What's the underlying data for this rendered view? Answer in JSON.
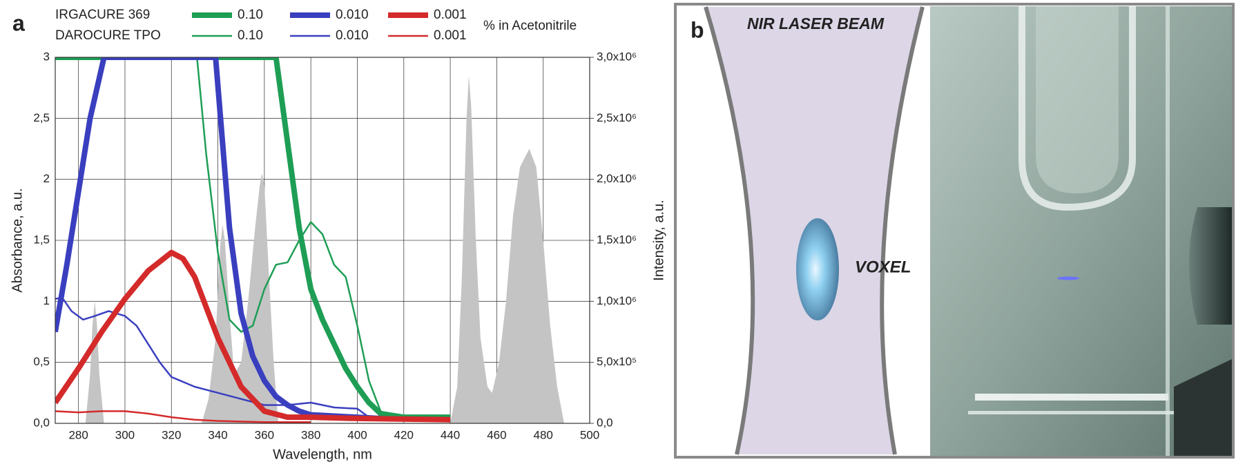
{
  "chart_data": {
    "type": "line",
    "panel_label": "a",
    "x_label": "Wavelength, nm",
    "y_label": "Absorbance, a.u.",
    "y2_label": "Intensity, a.u.",
    "legend_note": "% in Acetonitrile",
    "grid": true,
    "xlim": [
      270,
      500
    ],
    "xticks": [
      280,
      300,
      320,
      340,
      360,
      380,
      400,
      420,
      440,
      460,
      480,
      500
    ],
    "ylim": [
      0,
      3
    ],
    "yticks": [
      {
        "value": 0,
        "label": "0,0"
      },
      {
        "value": 0.5,
        "label": "0,5"
      },
      1,
      {
        "value": 1.5,
        "label": "1,5"
      },
      2,
      {
        "value": 2.5,
        "label": "2,5"
      },
      3
    ],
    "y2lim": [
      0,
      3000000
    ],
    "y2ticks": [
      {
        "value": 0,
        "label": "0,0"
      },
      {
        "value": 500000,
        "label": "5,0x10⁵"
      },
      {
        "value": 1000000,
        "label": "1,0x10⁶"
      },
      {
        "value": 1500000,
        "label": "1,5x10⁶"
      },
      {
        "value": 2000000,
        "label": "2,0x10⁶"
      },
      {
        "value": 2500000,
        "label": "2,5x10⁶"
      },
      {
        "value": 3000000,
        "label": "3,0x10⁶"
      }
    ],
    "series": [
      {
        "type": "area",
        "axis": "y2",
        "color": "#c4c4c4",
        "x": [
          270,
          283,
          285,
          286,
          287,
          288,
          289,
          291,
          333,
          336,
          339,
          341,
          342,
          343,
          345,
          347,
          350,
          353,
          356,
          358,
          359,
          360,
          362,
          364,
          366,
          440,
          443,
          445,
          447,
          448,
          449,
          451,
          453,
          456,
          458,
          461,
          464,
          467,
          470,
          474,
          477,
          480,
          483,
          486,
          489,
          500
        ],
        "values": [
          0,
          0,
          400000,
          800000,
          1000000,
          800000,
          400000,
          0,
          0,
          200000,
          700000,
          1450000,
          1630000,
          1500000,
          900000,
          400000,
          500000,
          1000000,
          1600000,
          1950000,
          2050000,
          1950000,
          1200000,
          500000,
          0,
          0,
          300000,
          1200000,
          2500000,
          2850000,
          2600000,
          1500000,
          700000,
          300000,
          250000,
          500000,
          1000000,
          1700000,
          2100000,
          2250000,
          2100000,
          1500000,
          800000,
          300000,
          0,
          0
        ]
      },
      {
        "type": "line",
        "group": "DAROCURE TPO",
        "name": "0.10",
        "color": "#1e9e55",
        "line_width": 2.5,
        "x": [
          331,
          335,
          340,
          345,
          350,
          355,
          360,
          365,
          370,
          375,
          380,
          385,
          390,
          395,
          400,
          405,
          410,
          415,
          420
        ],
        "values": [
          3,
          2.2,
          1.4,
          0.85,
          0.75,
          0.8,
          1.1,
          1.3,
          1.32,
          1.5,
          1.65,
          1.55,
          1.3,
          1.2,
          0.8,
          0.35,
          0.1,
          0.05,
          0.05
        ]
      },
      {
        "type": "line",
        "group": "DAROCURE TPO",
        "name": "0.010",
        "color": "#3a3fbf",
        "line_width": 2.5,
        "x": [
          270,
          273,
          277,
          282,
          287,
          293,
          300,
          305,
          310,
          315,
          320,
          330,
          340,
          350,
          360,
          370,
          380,
          390,
          400,
          405,
          420
        ],
        "values": [
          1.02,
          1.03,
          0.92,
          0.85,
          0.88,
          0.92,
          0.88,
          0.8,
          0.65,
          0.5,
          0.38,
          0.3,
          0.25,
          0.2,
          0.15,
          0.15,
          0.17,
          0.13,
          0.12,
          0.05,
          0.04
        ]
      },
      {
        "type": "line",
        "group": "DAROCURE TPO",
        "name": "0.001",
        "color": "#d42a2a",
        "line_width": 2.5,
        "x": [
          270,
          280,
          290,
          300,
          310,
          320,
          330,
          340,
          360,
          380
        ],
        "values": [
          0.1,
          0.09,
          0.1,
          0.1,
          0.08,
          0.05,
          0.03,
          0.02,
          0.01,
          0.01
        ]
      },
      {
        "type": "line",
        "group": "IRGACURE 369",
        "name": "0.10",
        "color": "#1e9e55",
        "line_width": 8,
        "x": [
          270,
          365,
          370,
          375,
          380,
          385,
          390,
          395,
          400,
          405,
          410,
          420,
          440
        ],
        "values": [
          3,
          3,
          2.3,
          1.6,
          1.1,
          0.85,
          0.65,
          0.45,
          0.3,
          0.17,
          0.08,
          0.05,
          0.05
        ]
      },
      {
        "type": "line",
        "group": "IRGACURE 369",
        "name": "0.010",
        "color": "#3a3fbf",
        "line_width": 8,
        "x": [
          270,
          275,
          280,
          285,
          291,
          339,
          342,
          345,
          350,
          355,
          360,
          365,
          370,
          375,
          380,
          400,
          410
        ],
        "values": [
          0.75,
          1.3,
          1.9,
          2.5,
          3,
          3,
          2.3,
          1.6,
          0.9,
          0.55,
          0.35,
          0.22,
          0.15,
          0.1,
          0.07,
          0.05,
          0.04
        ]
      },
      {
        "type": "line",
        "group": "IRGACURE 369",
        "name": "0.001",
        "color": "#d42a2a",
        "line_width": 8,
        "x": [
          270,
          280,
          290,
          300,
          310,
          320,
          325,
          330,
          340,
          350,
          360,
          370,
          380,
          400,
          440
        ],
        "values": [
          0.17,
          0.45,
          0.75,
          1.02,
          1.25,
          1.4,
          1.35,
          1.2,
          0.7,
          0.3,
          0.1,
          0.05,
          0.05,
          0.04,
          0.03
        ]
      }
    ]
  },
  "panel_b": {
    "label": "b",
    "beam_label": "NIR LASER BEAM",
    "voxel_label": "VOXEL"
  }
}
